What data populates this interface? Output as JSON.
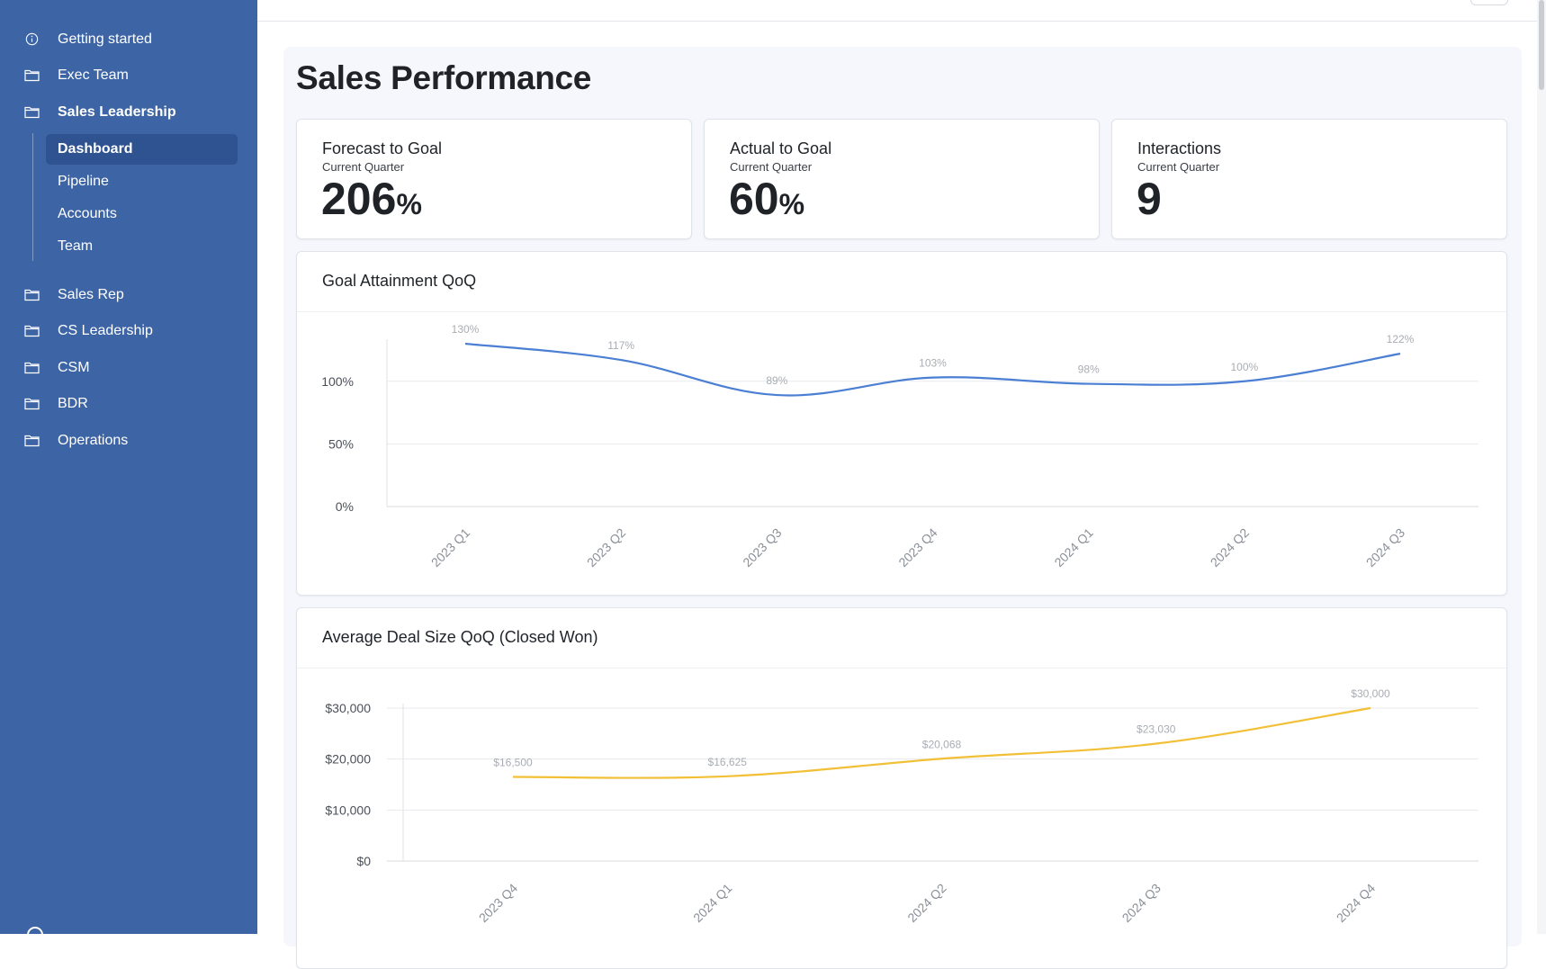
{
  "sidebar": {
    "items": [
      {
        "label": "Getting started",
        "icon": "info-icon"
      },
      {
        "label": "Exec Team",
        "icon": "folder-icon"
      },
      {
        "label": "Sales Leadership",
        "icon": "folder-icon"
      },
      {
        "label": "Sales Rep",
        "icon": "folder-icon"
      },
      {
        "label": "CS Leadership",
        "icon": "folder-icon"
      },
      {
        "label": "CSM",
        "icon": "folder-icon"
      },
      {
        "label": "BDR",
        "icon": "folder-icon"
      },
      {
        "label": "Operations",
        "icon": "folder-icon"
      }
    ],
    "subitems": [
      {
        "label": "Dashboard",
        "active": true
      },
      {
        "label": "Pipeline",
        "active": false
      },
      {
        "label": "Accounts",
        "active": false
      },
      {
        "label": "Team",
        "active": false
      }
    ]
  },
  "page": {
    "title": "Sales Performance"
  },
  "kpis": [
    {
      "title": "Forecast to Goal",
      "subtitle": "Current Quarter",
      "value": "206",
      "unit": "%"
    },
    {
      "title": "Actual to Goal",
      "subtitle": "Current Quarter",
      "value": "60",
      "unit": "%"
    },
    {
      "title": "Interactions",
      "subtitle": "Current Quarter",
      "value": "9",
      "unit": ""
    }
  ],
  "colors": {
    "sidebar": "#3d65a5",
    "accent_blue": "#4a7fd4",
    "accent_yellow": "#f2c037"
  },
  "chart_data": [
    {
      "type": "line",
      "title": "Goal Attainment QoQ",
      "categories": [
        "2023 Q1",
        "2023 Q2",
        "2023 Q3",
        "2023 Q4",
        "2024 Q1",
        "2024 Q2",
        "2024 Q3"
      ],
      "values": [
        130,
        117,
        89,
        103,
        98,
        100,
        122
      ],
      "data_labels": [
        "130%",
        "117%",
        "89%",
        "103%",
        "98%",
        "100%",
        "122%"
      ],
      "y_ticks": [
        "0%",
        "50%",
        "100%"
      ],
      "y_tick_values": [
        0,
        50,
        100
      ],
      "ylim": [
        0,
        130
      ],
      "grid": true,
      "color": "#4a7fd4"
    },
    {
      "type": "line",
      "title": "Average Deal Size QoQ (Closed Won)",
      "categories": [
        "2023 Q4",
        "2024 Q1",
        "2024 Q2",
        "2024 Q3",
        "2024 Q4"
      ],
      "values": [
        16500,
        16625,
        20068,
        23030,
        30000
      ],
      "data_labels": [
        "$16,500",
        "$16,625",
        "$20,068",
        "$23,030",
        "$30,000"
      ],
      "y_ticks": [
        "$0",
        "$10,000",
        "$20,000",
        "$30,000"
      ],
      "y_tick_values": [
        0,
        10000,
        20000,
        30000
      ],
      "ylim": [
        0,
        30000
      ],
      "grid": true,
      "color": "#f2c037"
    }
  ]
}
